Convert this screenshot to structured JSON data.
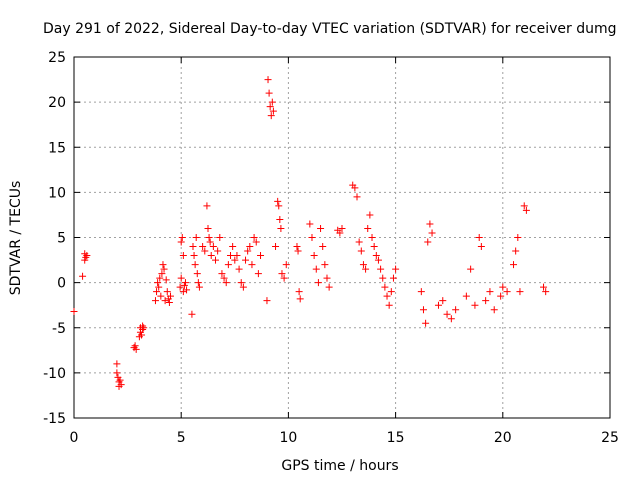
{
  "chart_data": {
    "type": "scatter",
    "title": "Day 291 of 2022, Sidereal Day-to-day VTEC variation (SDTVAR) for receiver dumg",
    "xlabel": "GPS time / hours",
    "ylabel": "SDTVAR / TECUs",
    "xlim": [
      0,
      25
    ],
    "ylim": [
      -15,
      25
    ],
    "xticks": [
      0,
      5,
      10,
      15,
      20,
      25
    ],
    "yticks": [
      -15,
      -10,
      -5,
      0,
      5,
      10,
      15,
      20,
      25
    ],
    "grid": true,
    "marker": "+",
    "color": "#ff0000",
    "series": [
      {
        "name": "SDTVAR",
        "x": [
          0.0,
          0.4,
          0.5,
          0.5,
          0.55,
          0.6,
          2.0,
          2.0,
          2.05,
          2.1,
          2.1,
          2.15,
          2.2,
          2.8,
          2.85,
          2.9,
          3.05,
          3.1,
          3.1,
          3.15,
          3.2,
          3.2,
          3.25,
          3.8,
          3.85,
          3.9,
          3.95,
          4.0,
          4.05,
          4.1,
          4.15,
          4.2,
          4.25,
          4.3,
          4.35,
          4.4,
          4.45,
          4.5,
          4.95,
          5.0,
          5.0,
          5.05,
          5.1,
          5.1,
          5.15,
          5.2,
          5.25,
          5.5,
          5.55,
          5.6,
          5.65,
          5.7,
          5.75,
          5.8,
          5.85,
          6.0,
          6.1,
          6.2,
          6.25,
          6.3,
          6.35,
          6.4,
          6.5,
          6.6,
          6.7,
          6.8,
          6.9,
          7.0,
          7.1,
          7.2,
          7.3,
          7.4,
          7.5,
          7.6,
          7.7,
          7.8,
          7.9,
          8.0,
          8.1,
          8.2,
          8.3,
          8.4,
          8.5,
          8.6,
          8.7,
          9.0,
          9.05,
          9.1,
          9.15,
          9.2,
          9.25,
          9.3,
          9.4,
          9.5,
          9.55,
          9.6,
          9.65,
          9.7,
          9.8,
          9.9,
          10.4,
          10.45,
          10.5,
          10.55,
          11.0,
          11.1,
          11.2,
          11.3,
          11.4,
          11.5,
          11.6,
          11.7,
          11.8,
          11.9,
          12.3,
          12.4,
          12.5,
          13.0,
          13.1,
          13.2,
          13.3,
          13.4,
          13.5,
          13.6,
          13.7,
          13.8,
          13.9,
          14.0,
          14.1,
          14.2,
          14.3,
          14.4,
          14.5,
          14.6,
          14.7,
          14.8,
          14.9,
          15.0,
          16.2,
          16.3,
          16.4,
          16.5,
          16.6,
          16.7,
          17.0,
          17.2,
          17.4,
          17.6,
          17.8,
          18.3,
          18.5,
          18.7,
          18.9,
          19.0,
          19.2,
          19.4,
          19.6,
          19.9,
          20.0,
          20.2,
          20.5,
          20.6,
          20.7,
          20.8,
          21.0,
          21.1,
          21.9,
          22.0
        ],
        "y": [
          -3.2,
          0.7,
          2.5,
          3.2,
          2.8,
          3.0,
          -10.0,
          -9.0,
          -10.5,
          -11.0,
          -11.5,
          -10.8,
          -11.3,
          -7.2,
          -7.0,
          -7.4,
          -6.0,
          -5.5,
          -5.0,
          -5.8,
          -4.8,
          -5.2,
          -5.0,
          -2.0,
          -1.0,
          0.0,
          -0.5,
          0.5,
          -1.5,
          1.0,
          2.0,
          1.5,
          -2.0,
          0.3,
          -1.0,
          -1.8,
          -2.2,
          -1.5,
          -0.5,
          0.5,
          4.5,
          5.0,
          3.0,
          -1.0,
          -0.3,
          0.0,
          -0.8,
          -3.5,
          4.0,
          3.0,
          2.0,
          5.0,
          1.0,
          0.0,
          -0.5,
          4.0,
          3.5,
          8.5,
          6.0,
          5.0,
          4.5,
          3.0,
          4.0,
          2.5,
          3.5,
          5.0,
          1.0,
          0.5,
          0.0,
          2.0,
          3.0,
          4.0,
          2.5,
          3.0,
          1.5,
          0.0,
          -0.5,
          2.5,
          3.5,
          4.0,
          2.0,
          5.0,
          4.5,
          1.0,
          3.0,
          -2.0,
          22.5,
          21.0,
          19.5,
          18.5,
          20.0,
          19.0,
          4.0,
          9.0,
          8.5,
          7.0,
          6.0,
          1.0,
          0.5,
          2.0,
          4.0,
          3.5,
          -1.0,
          -1.8,
          6.5,
          5.0,
          3.0,
          1.5,
          0.0,
          6.0,
          4.0,
          2.0,
          0.5,
          -0.5,
          5.8,
          5.5,
          6.0,
          10.8,
          10.5,
          9.5,
          4.5,
          3.5,
          2.0,
          1.5,
          6.0,
          7.5,
          5.0,
          4.0,
          3.0,
          2.5,
          1.5,
          0.5,
          -0.5,
          -1.5,
          -2.5,
          -1.0,
          0.5,
          1.5,
          -1.0,
          -3.0,
          -4.5,
          4.5,
          6.5,
          5.5,
          -2.5,
          -2.0,
          -3.5,
          -4.0,
          -3.0,
          -1.5,
          1.5,
          -2.5,
          5.0,
          4.0,
          -2.0,
          -1.0,
          -3.0,
          -1.5,
          -0.5,
          -1.0,
          2.0,
          3.5,
          5.0,
          -1.0,
          8.5,
          8.0,
          -0.5,
          -1.0
        ]
      }
    ]
  }
}
